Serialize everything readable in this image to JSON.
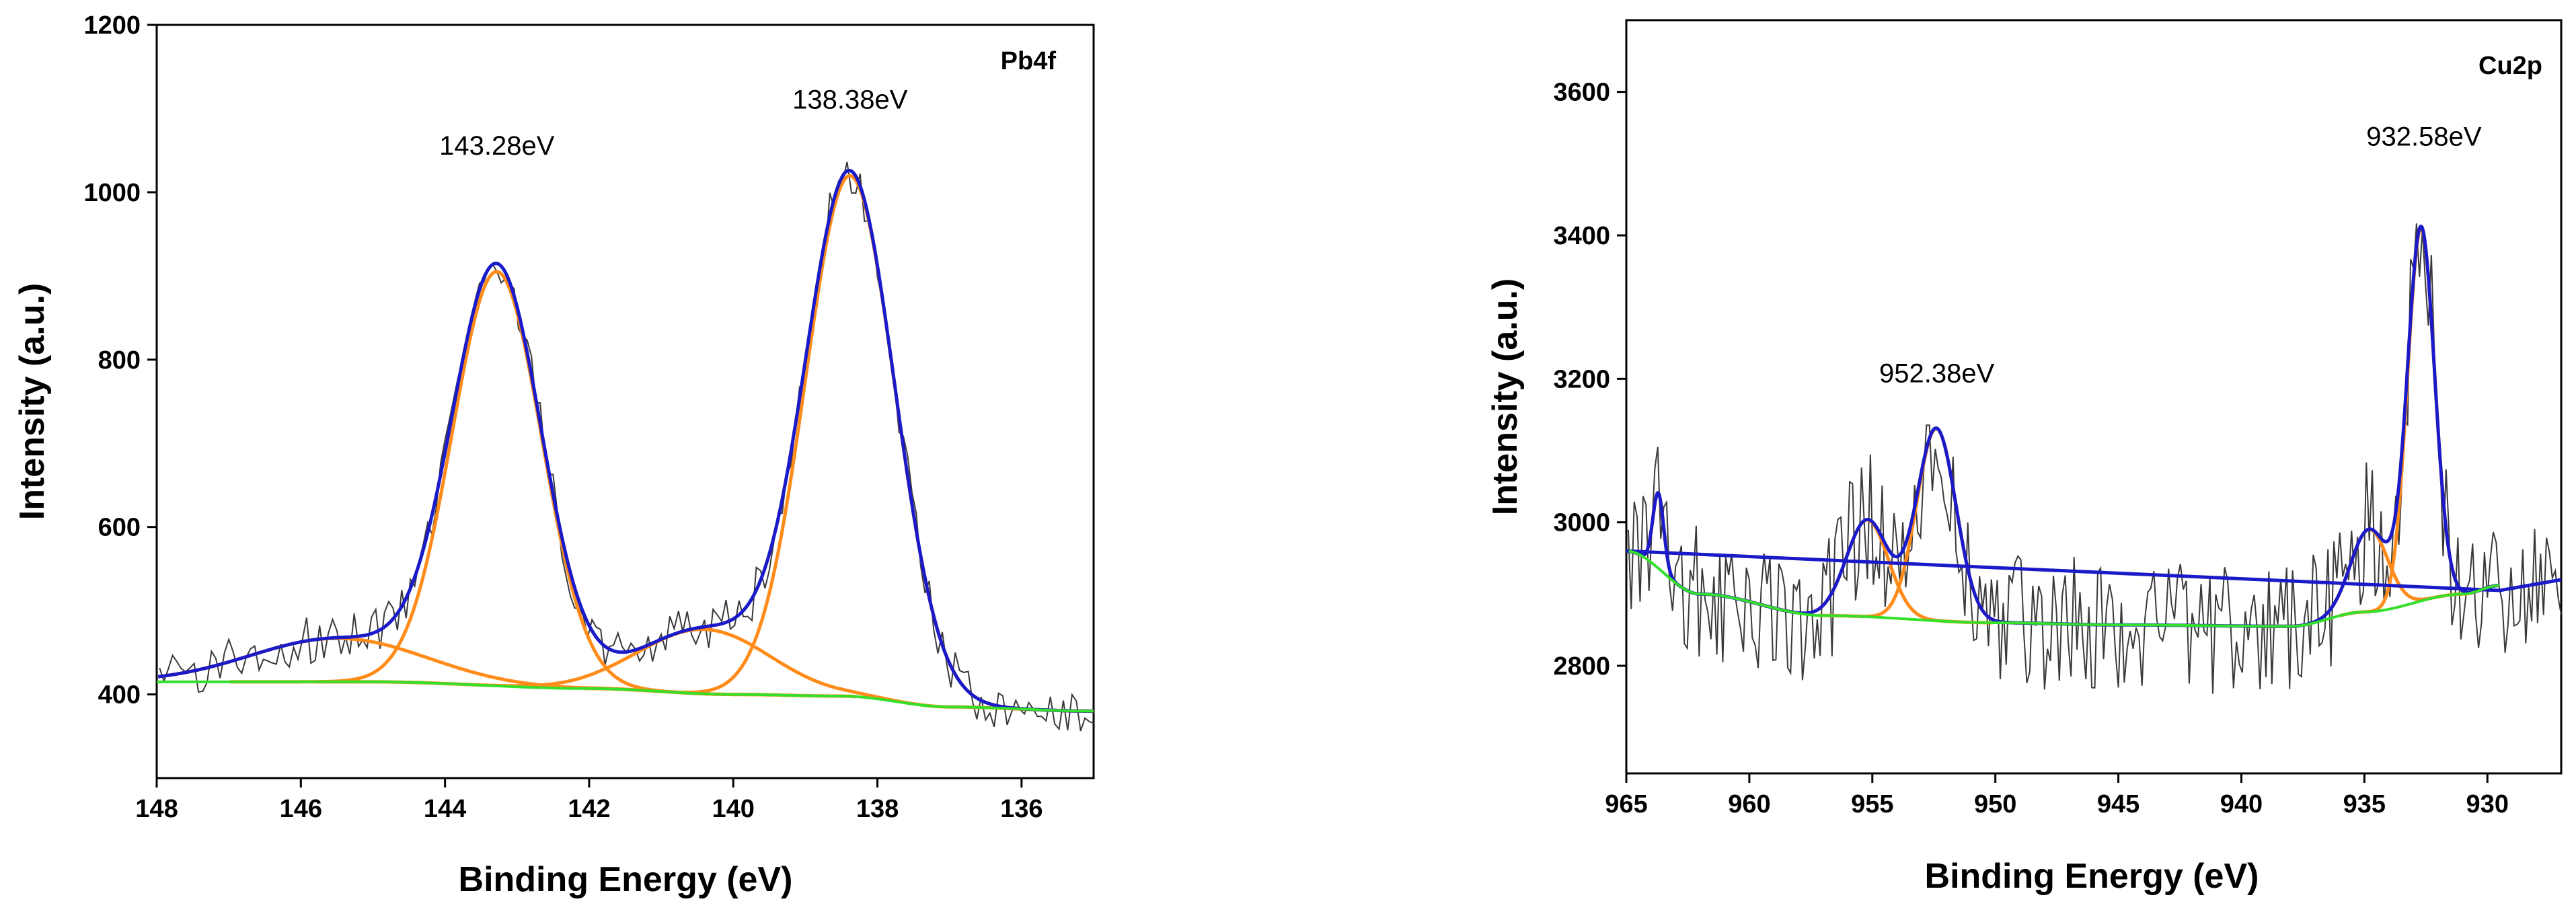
{
  "chart_data": [
    {
      "type": "line",
      "panel_label": "Pb4f",
      "xlabel": "Binding Energy (eV)",
      "ylabel": "Intensity (a.u.)",
      "xlim": [
        148,
        135
      ],
      "ylim": [
        300,
        1200
      ],
      "xticks": [
        "148",
        "146",
        "144",
        "142",
        "140",
        "138",
        "136"
      ],
      "xtick_values": [
        148,
        146,
        144,
        142,
        140,
        138,
        136
      ],
      "yticks": [
        "400",
        "600",
        "800",
        "1000",
        "1200"
      ],
      "ytick_values": [
        400,
        600,
        800,
        1000,
        1200
      ],
      "peak_annotations": [
        {
          "text": "143.28eV",
          "x": 143.28,
          "y": 1045
        },
        {
          "text": "138.38eV",
          "x": 138.38,
          "y": 1100
        }
      ],
      "baseline": {
        "points": [
          [
            148,
            415
          ],
          [
            145,
            415
          ],
          [
            142,
            407
          ],
          [
            140,
            400
          ],
          [
            138.5,
            398
          ],
          [
            137,
            385
          ],
          [
            135,
            380
          ]
        ]
      },
      "components": [
        {
          "name": "peak-143.28",
          "center": 143.28,
          "amplitude": 495,
          "sigma": 0.62
        },
        {
          "name": "peak-138.38",
          "center": 138.38,
          "amplitude": 622,
          "sigma": 0.62
        },
        {
          "name": "satellite-145.5",
          "center": 145.5,
          "amplitude": 52,
          "sigma": 1.2
        },
        {
          "name": "satellite-140.4",
          "center": 140.4,
          "amplitude": 77,
          "sigma": 0.9
        }
      ],
      "noise": {
        "step": 0.06,
        "amplitude": 28,
        "seed": 11
      },
      "colors": {
        "raw": "#3a3a3a",
        "envelope": "#1a1ac8",
        "component": "#ff8c1a",
        "baseline": "#33e02a"
      }
    },
    {
      "type": "line",
      "panel_label": "Cu2p",
      "xlabel": "Binding Energy (eV)",
      "ylabel": "Intensity (a.u.)",
      "xlim": [
        965,
        927
      ],
      "ylim": [
        2650,
        3700
      ],
      "xticks": [
        "965",
        "960",
        "955",
        "950",
        "945",
        "940",
        "935",
        "930"
      ],
      "xtick_values": [
        965,
        960,
        955,
        950,
        945,
        940,
        935,
        930
      ],
      "yticks": [
        "2800",
        "3000",
        "3200",
        "3400",
        "3600"
      ],
      "ytick_values": [
        2800,
        3000,
        3200,
        3400,
        3600
      ],
      "peak_annotations": [
        {
          "text": "952.38eV",
          "x": 952.38,
          "y": 3195
        },
        {
          "text": "932.58eV",
          "x": 932.58,
          "y": 3525
        }
      ],
      "baseline": {
        "points": [
          [
            965,
            2960
          ],
          [
            962,
            2900
          ],
          [
            957,
            2870
          ],
          [
            950,
            2860
          ],
          [
            945,
            2857
          ],
          [
            938,
            2855
          ],
          [
            935,
            2875
          ],
          [
            931,
            2900
          ],
          [
            929.5,
            2912
          ]
        ]
      },
      "components": [
        {
          "name": "peak-932.58",
          "center": 932.7,
          "amplitude": 520,
          "sigma": 0.55
        },
        {
          "name": "shoulder-934.8",
          "center": 934.8,
          "amplitude": 115,
          "sigma": 0.75
        },
        {
          "name": "peak-952.38",
          "center": 952.4,
          "amplitude": 268,
          "sigma": 0.8
        },
        {
          "name": "satellite-955.2",
          "center": 955.2,
          "amplitude": 135,
          "sigma": 0.85
        },
        {
          "name": "spike-963.7",
          "center": 963.7,
          "amplitude": 105,
          "sigma": 0.22
        }
      ],
      "envelope_tail": [
        [
          929.5,
          2905
        ],
        [
          927,
          2920
        ]
      ],
      "noise": {
        "step": 0.12,
        "amplitude": 95,
        "seed": 23
      },
      "colors": {
        "raw": "#3a3a3a",
        "envelope": "#1a1ac8",
        "component": "#ff8c1a",
        "baseline": "#33e02a"
      }
    }
  ]
}
